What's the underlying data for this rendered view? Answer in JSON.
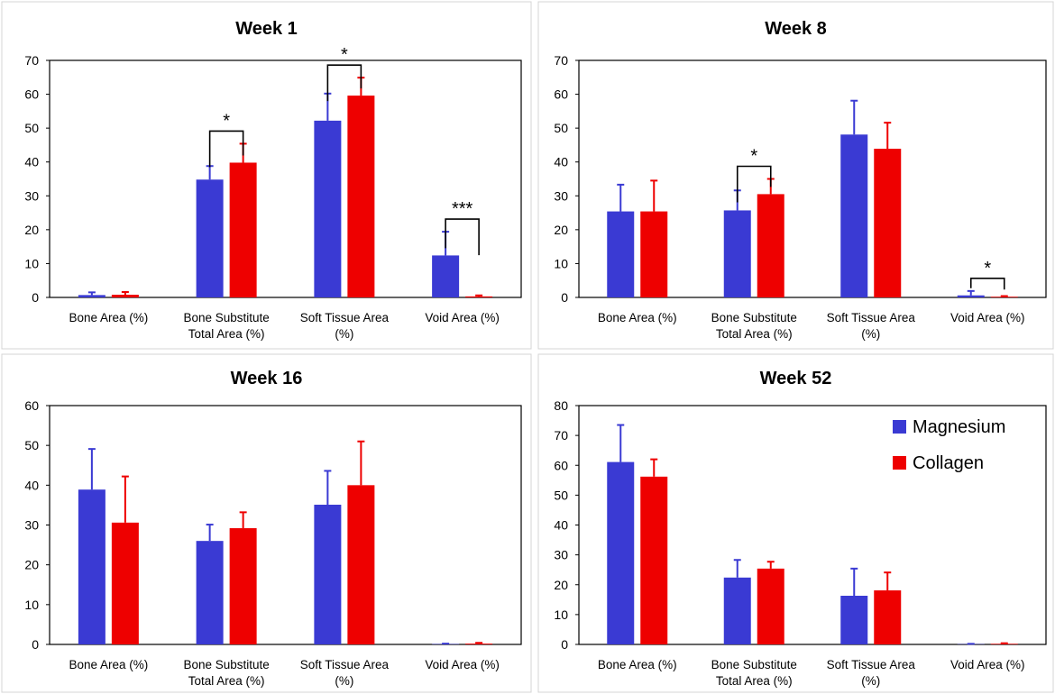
{
  "colors": {
    "magnesium": "#3a3ad3",
    "collagen": "#ee0000"
  },
  "legend": {
    "placement": "top-right of Week 52 panel"
  },
  "chart_data": [
    {
      "type": "bar",
      "title": "Week 1",
      "categories": [
        "Bone Area (%)",
        "Bone Substitute Total Area (%)",
        "Soft Tissue Area (%)",
        "Void Area (%)"
      ],
      "category_lines": [
        [
          "Bone Area (%)"
        ],
        [
          "Bone Substitute",
          "Total Area (%)"
        ],
        [
          "Soft Tissue Area",
          "(%)"
        ],
        [
          "Void Area (%)"
        ]
      ],
      "ylim": [
        0,
        70
      ],
      "yticks": [
        0,
        10,
        20,
        30,
        40,
        50,
        60,
        70
      ],
      "series": [
        {
          "name": "Magnesium",
          "values": [
            0.7,
            34.8,
            52.2,
            12.4
          ],
          "errors": [
            0.8,
            4.0,
            8.0,
            7.0
          ]
        },
        {
          "name": "Collagen",
          "values": [
            0.8,
            39.8,
            59.6,
            0.3
          ],
          "errors": [
            0.8,
            5.6,
            5.3,
            0.3
          ]
        }
      ],
      "annotations": [
        {
          "category": 1,
          "label": "*"
        },
        {
          "category": 2,
          "label": "*"
        },
        {
          "category": 3,
          "label": "***"
        }
      ]
    },
    {
      "type": "bar",
      "title": "Week 8",
      "categories": [
        "Bone Area (%)",
        "Bone Substitute Total Area (%)",
        "Soft Tissue Area (%)",
        "Void Area (%)"
      ],
      "category_lines": [
        [
          "Bone Area (%)"
        ],
        [
          "Bone Substitute",
          "Total Area (%)"
        ],
        [
          "Soft Tissue Area",
          "(%)"
        ],
        [
          "Void Area (%)"
        ]
      ],
      "ylim": [
        0,
        70
      ],
      "yticks": [
        0,
        10,
        20,
        30,
        40,
        50,
        60,
        70
      ],
      "series": [
        {
          "name": "Magnesium",
          "values": [
            25.4,
            25.7,
            48.1,
            0.6
          ],
          "errors": [
            7.9,
            5.9,
            10.0,
            1.3
          ]
        },
        {
          "name": "Collagen",
          "values": [
            25.4,
            30.5,
            43.9,
            0.2
          ],
          "errors": [
            9.1,
            4.5,
            7.7,
            0.2
          ]
        }
      ],
      "annotations": [
        {
          "category": 1,
          "label": "*"
        },
        {
          "category": 3,
          "label": "*"
        }
      ]
    },
    {
      "type": "bar",
      "title": "Week 16",
      "categories": [
        "Bone Area (%)",
        "Bone Substitute Total Area (%)",
        "Soft Tissue Area (%)",
        "Void Area (%)"
      ],
      "category_lines": [
        [
          "Bone Area (%)"
        ],
        [
          "Bone Substitute",
          "Total Area (%)"
        ],
        [
          "Soft Tissue Area",
          "(%)"
        ],
        [
          "Void Area (%)"
        ]
      ],
      "ylim": [
        0,
        60
      ],
      "yticks": [
        0,
        10,
        20,
        30,
        40,
        50,
        60
      ],
      "series": [
        {
          "name": "Magnesium",
          "values": [
            38.9,
            26.0,
            35.1,
            0.1
          ],
          "errors": [
            10.2,
            4.1,
            8.5,
            0.1
          ]
        },
        {
          "name": "Collagen",
          "values": [
            30.6,
            29.2,
            40.0,
            0.2
          ],
          "errors": [
            11.6,
            4.0,
            11.0,
            0.2
          ]
        }
      ],
      "annotations": []
    },
    {
      "type": "bar",
      "title": "Week 52",
      "categories": [
        "Bone Area (%)",
        "Bone Substitute Total Area (%)",
        "Soft Tissue Area (%)",
        "Void Area (%)"
      ],
      "category_lines": [
        [
          "Bone Area (%)"
        ],
        [
          "Bone Substitute",
          "Total Area (%)"
        ],
        [
          "Soft Tissue Area",
          "(%)"
        ],
        [
          "Void Area (%)"
        ]
      ],
      "ylim": [
        0,
        80
      ],
      "yticks": [
        0,
        10,
        20,
        30,
        40,
        50,
        60,
        70,
        80
      ],
      "series": [
        {
          "name": "Magnesium",
          "values": [
            61.1,
            22.4,
            16.3,
            0.1
          ],
          "errors": [
            12.4,
            5.9,
            9.1,
            0.1
          ]
        },
        {
          "name": "Collagen",
          "values": [
            56.2,
            25.4,
            18.1,
            0.2
          ],
          "errors": [
            5.8,
            2.3,
            6.0,
            0.2
          ]
        }
      ],
      "annotations": [],
      "legend": true
    }
  ]
}
